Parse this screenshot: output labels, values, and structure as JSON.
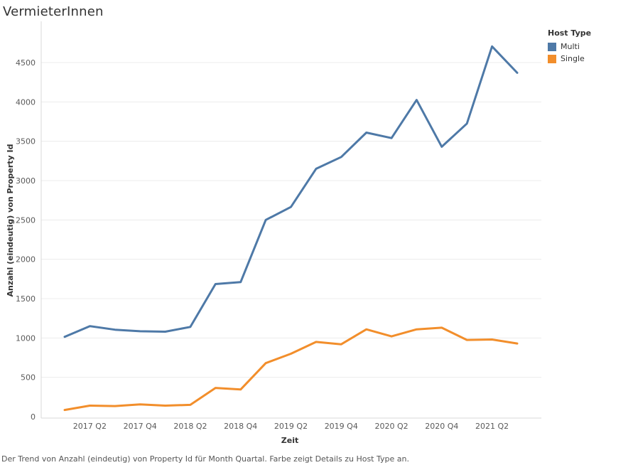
{
  "title": "VermieterInnen",
  "caption": "Der Trend von Anzahl (eindeutig) von Property Id für Month Quartal. Farbe zeigt Details zu Host Type an.",
  "legend": {
    "title": "Host Type",
    "items": [
      {
        "label": "Multi",
        "color": "#4e79a7"
      },
      {
        "label": "Single",
        "color": "#f28e2b"
      }
    ]
  },
  "chart_data": {
    "type": "line",
    "title": "VermieterInnen",
    "xlabel": "Zeit",
    "ylabel": "Anzahl (eindeutig) von Property Id",
    "ylim": [
      0,
      4800
    ],
    "yticks": [
      0,
      500,
      1000,
      1500,
      2000,
      2500,
      3000,
      3500,
      4000,
      4500
    ],
    "x": [
      "2017 Q1",
      "2017 Q2",
      "2017 Q3",
      "2017 Q4",
      "2018 Q1",
      "2018 Q2",
      "2018 Q3",
      "2018 Q4",
      "2019 Q1",
      "2019 Q2",
      "2019 Q3",
      "2019 Q4",
      "2020 Q1",
      "2020 Q2",
      "2020 Q3",
      "2020 Q4",
      "2021 Q1",
      "2021 Q2",
      "2021 Q3"
    ],
    "xtick_labels": [
      "2017 Q2",
      "2017 Q4",
      "2018 Q2",
      "2018 Q4",
      "2019 Q2",
      "2019 Q4",
      "2020 Q2",
      "2020 Q4",
      "2021 Q2"
    ],
    "grid": true,
    "legend_position": "top-right",
    "series": [
      {
        "name": "Multi",
        "color": "#4e79a7",
        "values": [
          1015,
          1150,
          1105,
          1085,
          1080,
          1140,
          1685,
          1710,
          2500,
          2665,
          3150,
          3300,
          3610,
          3540,
          4025,
          3430,
          3725,
          4705,
          4370
        ]
      },
      {
        "name": "Single",
        "color": "#f28e2b",
        "values": [
          85,
          140,
          135,
          155,
          140,
          150,
          365,
          345,
          680,
          800,
          950,
          920,
          1110,
          1020,
          1110,
          1130,
          975,
          980,
          930
        ]
      }
    ]
  }
}
